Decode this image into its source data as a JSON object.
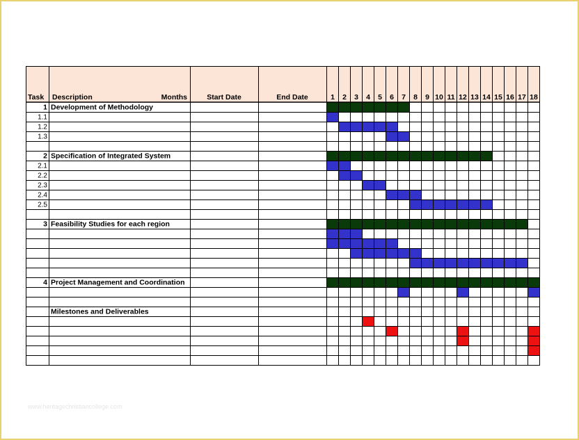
{
  "headers": {
    "task": "Task",
    "description": "Description",
    "months": "Months",
    "start_date": "Start Date",
    "end_date": "End Date",
    "month_numbers": [
      "1",
      "2",
      "3",
      "4",
      "5",
      "6",
      "7",
      "8",
      "9",
      "10",
      "11",
      "12",
      "13",
      "14",
      "15",
      "16",
      "17",
      "18"
    ]
  },
  "rows": [
    {
      "task": "1",
      "desc": "Development of Methodology",
      "bold": true
    },
    {
      "task": "1.1",
      "desc": "",
      "bold": false
    },
    {
      "task": "1.2",
      "desc": "",
      "bold": false
    },
    {
      "task": "1.3",
      "desc": "",
      "bold": false
    },
    {
      "task": "",
      "desc": "",
      "bold": false
    },
    {
      "task": "2",
      "desc": "Specification of Integrated System",
      "bold": true
    },
    {
      "task": "2.1",
      "desc": "",
      "bold": false
    },
    {
      "task": "2.2",
      "desc": "",
      "bold": false
    },
    {
      "task": "2.3",
      "desc": "",
      "bold": false
    },
    {
      "task": "2.4",
      "desc": "",
      "bold": false
    },
    {
      "task": "2.5",
      "desc": "",
      "bold": false
    },
    {
      "task": "",
      "desc": "",
      "bold": false
    },
    {
      "task": "3",
      "desc": "Feasibility Studies for each region",
      "bold": true
    },
    {
      "task": "",
      "desc": "",
      "bold": false
    },
    {
      "task": "",
      "desc": "",
      "bold": false
    },
    {
      "task": "",
      "desc": "",
      "bold": false
    },
    {
      "task": "",
      "desc": "",
      "bold": false
    },
    {
      "task": "",
      "desc": "",
      "bold": false
    },
    {
      "task": "4",
      "desc": "Project Management and Coordination",
      "bold": true
    },
    {
      "task": "",
      "desc": "",
      "bold": false
    },
    {
      "task": "",
      "desc": "",
      "bold": false
    },
    {
      "task": "",
      "desc": "Milestones and Deliverables",
      "bold": true
    },
    {
      "task": "",
      "desc": "",
      "bold": false
    },
    {
      "task": "",
      "desc": "",
      "bold": false
    },
    {
      "task": "",
      "desc": "",
      "bold": false
    },
    {
      "task": "",
      "desc": "",
      "bold": false
    },
    {
      "task": "",
      "desc": "",
      "bold": false
    }
  ],
  "bars": [
    {
      "row": 0,
      "start": 1,
      "end": 7,
      "kind": "summary"
    },
    {
      "row": 1,
      "start": 1,
      "end": 1,
      "kind": "task"
    },
    {
      "row": 2,
      "start": 2,
      "end": 6,
      "kind": "task"
    },
    {
      "row": 3,
      "start": 6,
      "end": 7,
      "kind": "task"
    },
    {
      "row": 5,
      "start": 1,
      "end": 14,
      "kind": "summary"
    },
    {
      "row": 6,
      "start": 1,
      "end": 2,
      "kind": "task"
    },
    {
      "row": 7,
      "start": 2,
      "end": 3,
      "kind": "task"
    },
    {
      "row": 8,
      "start": 4,
      "end": 5,
      "kind": "task"
    },
    {
      "row": 9,
      "start": 6,
      "end": 8,
      "kind": "task"
    },
    {
      "row": 10,
      "start": 8,
      "end": 14,
      "kind": "task"
    },
    {
      "row": 12,
      "start": 1,
      "end": 17,
      "kind": "summary"
    },
    {
      "row": 13,
      "start": 1,
      "end": 3,
      "kind": "task"
    },
    {
      "row": 14,
      "start": 1,
      "end": 6,
      "kind": "task"
    },
    {
      "row": 15,
      "start": 3,
      "end": 8,
      "kind": "task"
    },
    {
      "row": 16,
      "start": 8,
      "end": 17,
      "kind": "task"
    },
    {
      "row": 18,
      "start": 1,
      "end": 18,
      "kind": "summary"
    },
    {
      "row": 19,
      "start": 7,
      "end": 7,
      "kind": "task"
    },
    {
      "row": 19,
      "start": 12,
      "end": 12,
      "kind": "task"
    },
    {
      "row": 19,
      "start": 18,
      "end": 18,
      "kind": "task"
    },
    {
      "row": 22,
      "start": 4,
      "end": 4,
      "kind": "milestone"
    },
    {
      "row": 23,
      "start": 6,
      "end": 6,
      "kind": "milestone"
    },
    {
      "row": 23,
      "start": 12,
      "end": 12,
      "kind": "milestone"
    },
    {
      "row": 24,
      "start": 12,
      "end": 12,
      "kind": "milestone"
    },
    {
      "row": 23,
      "start": 18,
      "end": 18,
      "kind": "milestone"
    },
    {
      "row": 24,
      "start": 18,
      "end": 18,
      "kind": "milestone"
    },
    {
      "row": 25,
      "start": 18,
      "end": 18,
      "kind": "milestone"
    }
  ],
  "colors": {
    "header_bg": "#fce4d6",
    "summary": "#0a3a0a",
    "task": "#3333cc",
    "milestone": "#ee1111",
    "grid": "#000000",
    "frame": "#e8d270"
  },
  "watermark": "www.heritagechristiancollege.com"
}
